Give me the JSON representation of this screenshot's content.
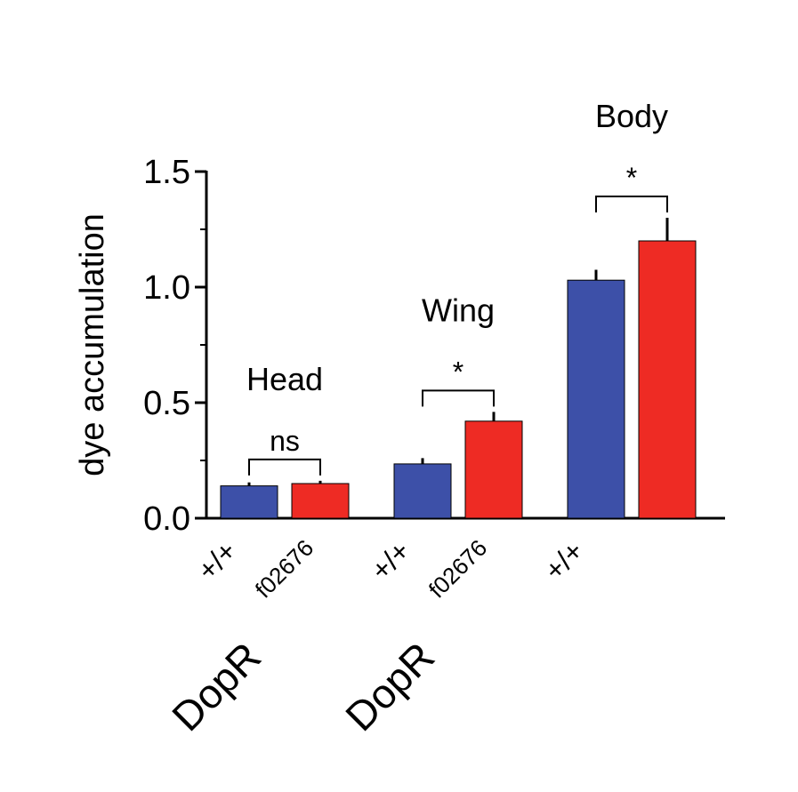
{
  "chart_data": {
    "type": "bar",
    "ylabel": "dye accumulation",
    "ylim": [
      0,
      1.5
    ],
    "yticks": [
      "0.0",
      "0.5",
      "1.0",
      "1.5"
    ],
    "y_minor_step": 0.25,
    "series_colors": {
      "wildtype": "#3d50a8",
      "mutant": "#ee2b24"
    },
    "groups": [
      {
        "title": "Head",
        "significance": "ns",
        "gene_label": "DopR",
        "bars": [
          {
            "label": "+/+",
            "value": 0.14,
            "error": 0.015,
            "color_key": "wildtype"
          },
          {
            "label": "f02676",
            "value": 0.15,
            "error": 0.012,
            "color_key": "mutant"
          }
        ]
      },
      {
        "title": "Wing",
        "significance": "*",
        "gene_label": "DopR",
        "bars": [
          {
            "label": "+/+",
            "value": 0.235,
            "error": 0.025,
            "color_key": "wildtype"
          },
          {
            "label": "f02676",
            "value": 0.42,
            "error": 0.04,
            "color_key": "mutant"
          }
        ]
      },
      {
        "title": "Body",
        "significance": "*",
        "gene_label": "",
        "bars": [
          {
            "label": "+/+",
            "value": 1.03,
            "error": 0.045,
            "color_key": "wildtype"
          },
          {
            "label": "",
            "value": 1.2,
            "error": 0.1,
            "color_key": "mutant"
          }
        ]
      }
    ]
  }
}
